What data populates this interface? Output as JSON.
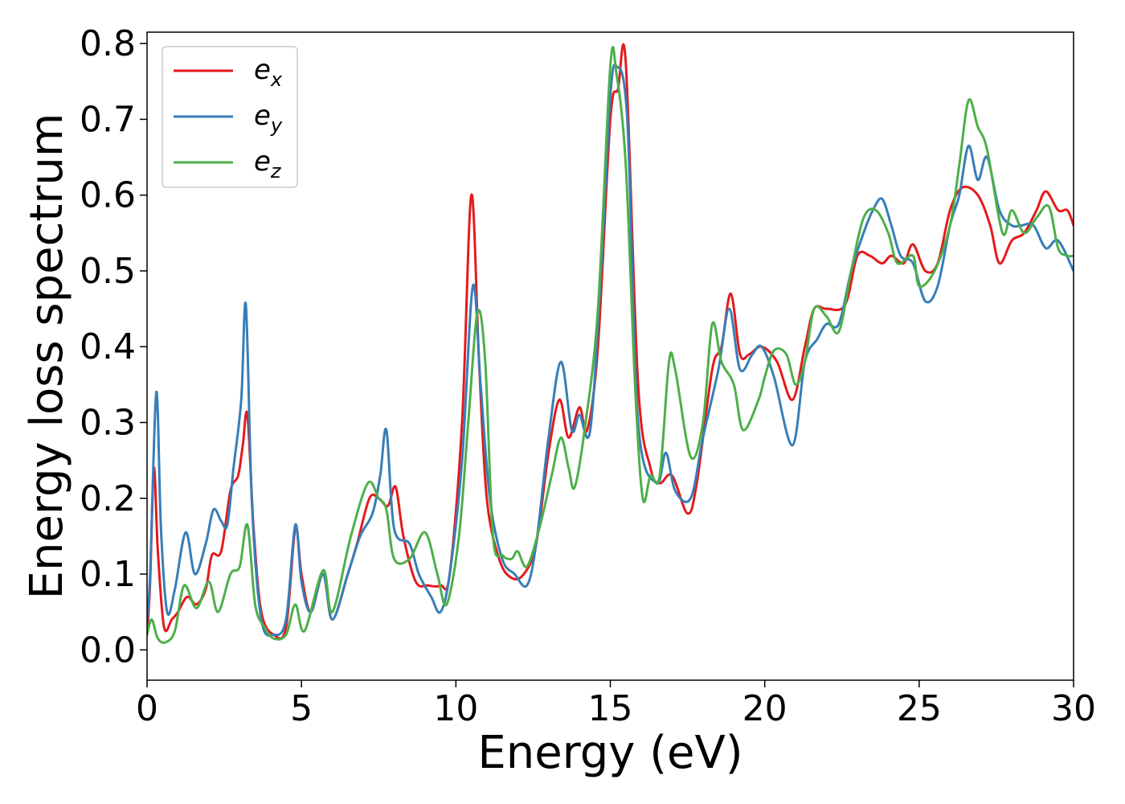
{
  "chart_data": {
    "type": "line",
    "xlabel": "Energy (eV)",
    "ylabel": "Energy loss spectrum",
    "xlim": [
      0,
      30
    ],
    "ylim": [
      -0.04,
      0.815
    ],
    "x_ticks": [
      "0",
      "5",
      "10",
      "15",
      "20",
      "25",
      "30"
    ],
    "y_ticks": [
      "0.0",
      "0.1",
      "0.2",
      "0.3",
      "0.4",
      "0.5",
      "0.6",
      "0.7",
      "0.8"
    ],
    "grid": false,
    "legend_position": "top-left",
    "series": [
      {
        "name": "e_x",
        "label_base": "e",
        "label_sub": "x",
        "color": "#e41a1c",
        "points": [
          [
            0,
            0.02
          ],
          [
            0.1,
            0.09
          ],
          [
            0.22,
            0.24
          ],
          [
            0.35,
            0.13
          ],
          [
            0.55,
            0.03
          ],
          [
            0.8,
            0.04
          ],
          [
            1.0,
            0.05
          ],
          [
            1.3,
            0.07
          ],
          [
            1.6,
            0.06
          ],
          [
            1.9,
            0.08
          ],
          [
            2.1,
            0.125
          ],
          [
            2.4,
            0.13
          ],
          [
            2.7,
            0.21
          ],
          [
            2.95,
            0.23
          ],
          [
            3.1,
            0.27
          ],
          [
            3.25,
            0.31
          ],
          [
            3.45,
            0.16
          ],
          [
            3.7,
            0.05
          ],
          [
            4.1,
            0.02
          ],
          [
            4.5,
            0.03
          ],
          [
            4.8,
            0.16
          ],
          [
            5.0,
            0.1
          ],
          [
            5.3,
            0.05
          ],
          [
            5.7,
            0.1
          ],
          [
            6.0,
            0.04
          ],
          [
            6.5,
            0.1
          ],
          [
            6.8,
            0.14
          ],
          [
            7.2,
            0.2
          ],
          [
            7.5,
            0.2
          ],
          [
            7.8,
            0.19
          ],
          [
            8.05,
            0.215
          ],
          [
            8.3,
            0.15
          ],
          [
            8.7,
            0.09
          ],
          [
            9.1,
            0.085
          ],
          [
            9.5,
            0.085
          ],
          [
            9.8,
            0.1
          ],
          [
            10.2,
            0.3
          ],
          [
            10.5,
            0.6
          ],
          [
            10.75,
            0.38
          ],
          [
            11.0,
            0.2
          ],
          [
            11.4,
            0.12
          ],
          [
            11.8,
            0.095
          ],
          [
            12.2,
            0.1
          ],
          [
            12.6,
            0.14
          ],
          [
            13.0,
            0.26
          ],
          [
            13.35,
            0.33
          ],
          [
            13.65,
            0.28
          ],
          [
            14.0,
            0.32
          ],
          [
            14.25,
            0.29
          ],
          [
            14.6,
            0.4
          ],
          [
            15.0,
            0.7
          ],
          [
            15.25,
            0.74
          ],
          [
            15.5,
            0.775
          ],
          [
            15.9,
            0.35
          ],
          [
            16.3,
            0.24
          ],
          [
            16.6,
            0.22
          ],
          [
            17.0,
            0.23
          ],
          [
            17.5,
            0.18
          ],
          [
            17.8,
            0.22
          ],
          [
            18.3,
            0.37
          ],
          [
            18.6,
            0.4
          ],
          [
            18.9,
            0.47
          ],
          [
            19.2,
            0.39
          ],
          [
            19.5,
            0.39
          ],
          [
            19.9,
            0.4
          ],
          [
            20.4,
            0.38
          ],
          [
            20.9,
            0.33
          ],
          [
            21.3,
            0.4
          ],
          [
            21.6,
            0.45
          ],
          [
            22.0,
            0.45
          ],
          [
            22.6,
            0.455
          ],
          [
            23.0,
            0.52
          ],
          [
            23.4,
            0.52
          ],
          [
            23.8,
            0.51
          ],
          [
            24.1,
            0.52
          ],
          [
            24.5,
            0.51
          ],
          [
            24.8,
            0.535
          ],
          [
            25.2,
            0.5
          ],
          [
            25.6,
            0.51
          ],
          [
            26.0,
            0.58
          ],
          [
            26.4,
            0.61
          ],
          [
            26.9,
            0.6
          ],
          [
            27.3,
            0.56
          ],
          [
            27.6,
            0.51
          ],
          [
            28.0,
            0.54
          ],
          [
            28.4,
            0.55
          ],
          [
            28.8,
            0.58
          ],
          [
            29.1,
            0.605
          ],
          [
            29.5,
            0.58
          ],
          [
            29.8,
            0.58
          ],
          [
            30.0,
            0.56
          ]
        ]
      },
      {
        "name": "e_y",
        "label_base": "e",
        "label_sub": "y",
        "color": "#377eb8",
        "points": [
          [
            0,
            0.04
          ],
          [
            0.1,
            0.1
          ],
          [
            0.3,
            0.34
          ],
          [
            0.45,
            0.16
          ],
          [
            0.65,
            0.05
          ],
          [
            0.9,
            0.08
          ],
          [
            1.25,
            0.155
          ],
          [
            1.55,
            0.1
          ],
          [
            1.9,
            0.14
          ],
          [
            2.15,
            0.185
          ],
          [
            2.4,
            0.17
          ],
          [
            2.6,
            0.165
          ],
          [
            2.8,
            0.24
          ],
          [
            3.05,
            0.33
          ],
          [
            3.2,
            0.455
          ],
          [
            3.4,
            0.19
          ],
          [
            3.7,
            0.04
          ],
          [
            4.1,
            0.02
          ],
          [
            4.5,
            0.04
          ],
          [
            4.8,
            0.165
          ],
          [
            5.0,
            0.09
          ],
          [
            5.3,
            0.05
          ],
          [
            5.7,
            0.1
          ],
          [
            6.0,
            0.04
          ],
          [
            6.5,
            0.1
          ],
          [
            6.9,
            0.15
          ],
          [
            7.3,
            0.18
          ],
          [
            7.55,
            0.23
          ],
          [
            7.75,
            0.29
          ],
          [
            8.0,
            0.16
          ],
          [
            8.5,
            0.14
          ],
          [
            8.8,
            0.1
          ],
          [
            9.2,
            0.07
          ],
          [
            9.5,
            0.05
          ],
          [
            9.8,
            0.1
          ],
          [
            10.2,
            0.25
          ],
          [
            10.55,
            0.48
          ],
          [
            10.8,
            0.35
          ],
          [
            11.1,
            0.2
          ],
          [
            11.5,
            0.12
          ],
          [
            11.9,
            0.1
          ],
          [
            12.3,
            0.085
          ],
          [
            12.6,
            0.14
          ],
          [
            13.0,
            0.28
          ],
          [
            13.4,
            0.38
          ],
          [
            13.75,
            0.29
          ],
          [
            14.0,
            0.31
          ],
          [
            14.35,
            0.29
          ],
          [
            14.7,
            0.5
          ],
          [
            15.0,
            0.73
          ],
          [
            15.2,
            0.77
          ],
          [
            15.55,
            0.7
          ],
          [
            15.9,
            0.3
          ],
          [
            16.5,
            0.22
          ],
          [
            16.8,
            0.26
          ],
          [
            17.1,
            0.21
          ],
          [
            17.6,
            0.2
          ],
          [
            18.0,
            0.28
          ],
          [
            18.5,
            0.37
          ],
          [
            18.85,
            0.45
          ],
          [
            19.2,
            0.37
          ],
          [
            19.6,
            0.39
          ],
          [
            19.9,
            0.4
          ],
          [
            20.3,
            0.36
          ],
          [
            20.9,
            0.27
          ],
          [
            21.3,
            0.38
          ],
          [
            21.7,
            0.41
          ],
          [
            22.0,
            0.43
          ],
          [
            22.4,
            0.43
          ],
          [
            22.8,
            0.5
          ],
          [
            23.2,
            0.55
          ],
          [
            23.5,
            0.58
          ],
          [
            23.8,
            0.595
          ],
          [
            24.1,
            0.56
          ],
          [
            24.4,
            0.52
          ],
          [
            24.8,
            0.51
          ],
          [
            25.2,
            0.46
          ],
          [
            25.6,
            0.48
          ],
          [
            26.0,
            0.56
          ],
          [
            26.3,
            0.6
          ],
          [
            26.6,
            0.665
          ],
          [
            26.9,
            0.62
          ],
          [
            27.2,
            0.65
          ],
          [
            27.6,
            0.58
          ],
          [
            28.0,
            0.56
          ],
          [
            28.3,
            0.56
          ],
          [
            28.7,
            0.56
          ],
          [
            29.1,
            0.53
          ],
          [
            29.5,
            0.54
          ],
          [
            30.0,
            0.5
          ]
        ]
      },
      {
        "name": "e_z",
        "label_base": "e",
        "label_sub": "z",
        "color": "#4daf4a",
        "points": [
          [
            0,
            0.02
          ],
          [
            0.15,
            0.04
          ],
          [
            0.35,
            0.015
          ],
          [
            0.6,
            0.01
          ],
          [
            0.9,
            0.025
          ],
          [
            1.2,
            0.085
          ],
          [
            1.6,
            0.055
          ],
          [
            2.0,
            0.09
          ],
          [
            2.3,
            0.05
          ],
          [
            2.7,
            0.1
          ],
          [
            3.0,
            0.11
          ],
          [
            3.25,
            0.165
          ],
          [
            3.5,
            0.06
          ],
          [
            3.8,
            0.03
          ],
          [
            4.1,
            0.015
          ],
          [
            4.5,
            0.02
          ],
          [
            4.8,
            0.06
          ],
          [
            5.1,
            0.025
          ],
          [
            5.7,
            0.105
          ],
          [
            6.0,
            0.05
          ],
          [
            6.6,
            0.15
          ],
          [
            7.15,
            0.22
          ],
          [
            7.5,
            0.2
          ],
          [
            7.75,
            0.185
          ],
          [
            8.0,
            0.12
          ],
          [
            8.5,
            0.12
          ],
          [
            9.0,
            0.155
          ],
          [
            9.4,
            0.1
          ],
          [
            9.7,
            0.06
          ],
          [
            10.1,
            0.15
          ],
          [
            10.4,
            0.3
          ],
          [
            10.7,
            0.445
          ],
          [
            10.95,
            0.38
          ],
          [
            11.2,
            0.15
          ],
          [
            11.5,
            0.125
          ],
          [
            11.8,
            0.12
          ],
          [
            12.0,
            0.13
          ],
          [
            12.3,
            0.11
          ],
          [
            12.7,
            0.16
          ],
          [
            13.1,
            0.23
          ],
          [
            13.4,
            0.28
          ],
          [
            13.65,
            0.24
          ],
          [
            13.85,
            0.215
          ],
          [
            14.2,
            0.3
          ],
          [
            14.6,
            0.45
          ],
          [
            15.0,
            0.77
          ],
          [
            15.2,
            0.76
          ],
          [
            15.5,
            0.64
          ],
          [
            15.8,
            0.35
          ],
          [
            16.05,
            0.2
          ],
          [
            16.3,
            0.23
          ],
          [
            16.6,
            0.23
          ],
          [
            16.9,
            0.38
          ],
          [
            17.1,
            0.37
          ],
          [
            17.6,
            0.255
          ],
          [
            18.0,
            0.3
          ],
          [
            18.3,
            0.43
          ],
          [
            18.6,
            0.38
          ],
          [
            19.0,
            0.35
          ],
          [
            19.3,
            0.29
          ],
          [
            19.8,
            0.33
          ],
          [
            20.0,
            0.36
          ],
          [
            20.3,
            0.395
          ],
          [
            20.7,
            0.39
          ],
          [
            21.0,
            0.35
          ],
          [
            21.3,
            0.38
          ],
          [
            21.6,
            0.45
          ],
          [
            22.0,
            0.44
          ],
          [
            22.4,
            0.42
          ],
          [
            22.8,
            0.5
          ],
          [
            23.2,
            0.57
          ],
          [
            23.6,
            0.58
          ],
          [
            24.0,
            0.55
          ],
          [
            24.3,
            0.51
          ],
          [
            24.8,
            0.52
          ],
          [
            25.0,
            0.48
          ],
          [
            25.5,
            0.5
          ],
          [
            26.0,
            0.56
          ],
          [
            26.3,
            0.64
          ],
          [
            26.6,
            0.725
          ],
          [
            26.9,
            0.69
          ],
          [
            27.2,
            0.66
          ],
          [
            27.7,
            0.55
          ],
          [
            28.0,
            0.58
          ],
          [
            28.4,
            0.55
          ],
          [
            28.8,
            0.57
          ],
          [
            29.2,
            0.585
          ],
          [
            29.5,
            0.53
          ],
          [
            29.8,
            0.52
          ],
          [
            30.0,
            0.52
          ]
        ]
      }
    ]
  }
}
